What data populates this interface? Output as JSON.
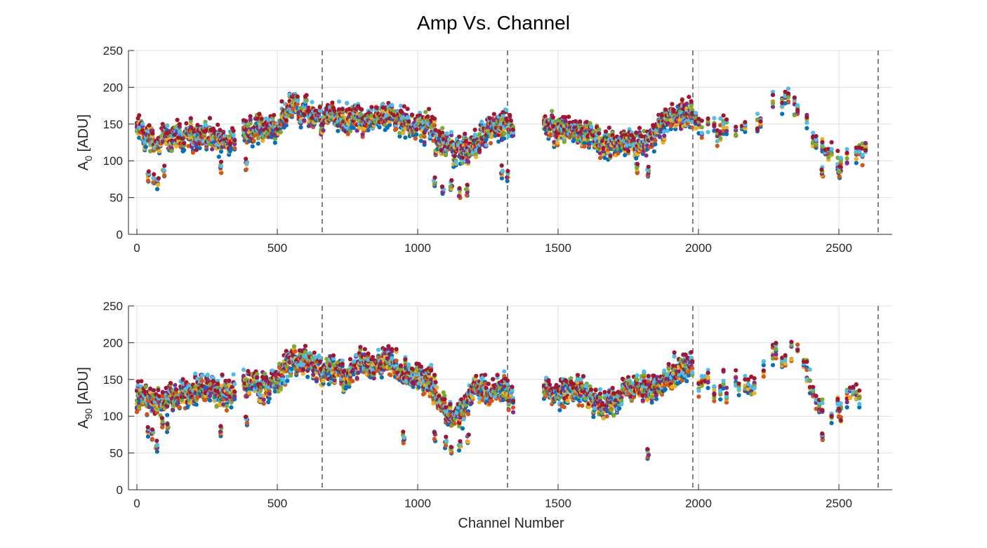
{
  "chart_data": [
    {
      "type": "scatter",
      "title": "Amp Vs. Channel",
      "xlabel": "",
      "ylabel": "A0 [ADU]",
      "ylabel_main": "A",
      "ylabel_sub": "0",
      "ylabel_unit": " [ADU]",
      "xlim": [
        -30,
        2690
      ],
      "ylim": [
        0,
        250
      ],
      "xticks": [
        0,
        500,
        1000,
        1500,
        2000,
        2500
      ],
      "yticks": [
        0,
        50,
        100,
        150,
        200,
        250
      ],
      "grid": true,
      "vlines": [
        660,
        1320,
        1980,
        2640
      ],
      "series_colors": [
        "#0072BD",
        "#D95319",
        "#EDB120",
        "#7E2F8E",
        "#77AC30",
        "#4DBEEE",
        "#A2142F"
      ],
      "channel_ranges": [
        [
          0,
          350
        ],
        [
          380,
          1340
        ],
        [
          1450,
          1980
        ],
        [
          1990,
          2600
        ]
      ],
      "profile": [
        [
          0,
          140
        ],
        [
          40,
          130
        ],
        [
          80,
          125
        ],
        [
          120,
          130
        ],
        [
          200,
          135
        ],
        [
          260,
          130
        ],
        [
          300,
          125
        ],
        [
          350,
          135
        ],
        [
          400,
          145
        ],
        [
          450,
          140
        ],
        [
          500,
          145
        ],
        [
          540,
          175
        ],
        [
          600,
          170
        ],
        [
          660,
          155
        ],
        [
          700,
          165
        ],
        [
          750,
          155
        ],
        [
          800,
          160
        ],
        [
          850,
          155
        ],
        [
          900,
          165
        ],
        [
          950,
          150
        ],
        [
          1000,
          150
        ],
        [
          1040,
          145
        ],
        [
          1080,
          125
        ],
        [
          1120,
          115
        ],
        [
          1160,
          110
        ],
        [
          1200,
          120
        ],
        [
          1250,
          140
        ],
        [
          1300,
          150
        ],
        [
          1340,
          145
        ],
        [
          1450,
          145
        ],
        [
          1500,
          145
        ],
        [
          1550,
          140
        ],
        [
          1600,
          140
        ],
        [
          1650,
          125
        ],
        [
          1700,
          120
        ],
        [
          1750,
          125
        ],
        [
          1800,
          120
        ],
        [
          1850,
          140
        ],
        [
          1900,
          160
        ],
        [
          1980,
          165
        ],
        [
          2000,
          150
        ],
        [
          2100,
          145
        ],
        [
          2200,
          140
        ],
        [
          2250,
          175
        ],
        [
          2300,
          185
        ],
        [
          2350,
          180
        ],
        [
          2400,
          140
        ],
        [
          2450,
          110
        ],
        [
          2500,
          100
        ],
        [
          2550,
          110
        ],
        [
          2600,
          110
        ]
      ],
      "outliers": [
        [
          40,
          80
        ],
        [
          60,
          75
        ],
        [
          75,
          70
        ],
        [
          95,
          85
        ],
        [
          300,
          90
        ],
        [
          390,
          95
        ],
        [
          1060,
          70
        ],
        [
          1090,
          60
        ],
        [
          1120,
          65
        ],
        [
          1150,
          55
        ],
        [
          1175,
          60
        ],
        [
          1300,
          85
        ],
        [
          1320,
          80
        ],
        [
          1780,
          90
        ],
        [
          1820,
          85
        ],
        [
          2440,
          85
        ],
        [
          2500,
          85
        ]
      ]
    },
    {
      "type": "scatter",
      "title": "",
      "xlabel": "Channel Number",
      "ylabel": "A90 [ADU]",
      "ylabel_main": "A",
      "ylabel_sub": "90",
      "ylabel_unit": " [ADU]",
      "xlim": [
        -30,
        2690
      ],
      "ylim": [
        0,
        250
      ],
      "xticks": [
        0,
        500,
        1000,
        1500,
        2000,
        2500
      ],
      "yticks": [
        0,
        50,
        100,
        150,
        200,
        250
      ],
      "grid": true,
      "vlines": [
        660,
        1320,
        1980,
        2640
      ],
      "series_colors": [
        "#0072BD",
        "#D95319",
        "#EDB120",
        "#7E2F8E",
        "#77AC30",
        "#4DBEEE",
        "#A2142F"
      ],
      "channel_ranges": [
        [
          0,
          350
        ],
        [
          380,
          1340
        ],
        [
          1450,
          1980
        ],
        [
          1990,
          2600
        ]
      ],
      "profile": [
        [
          0,
          130
        ],
        [
          40,
          120
        ],
        [
          80,
          120
        ],
        [
          120,
          125
        ],
        [
          200,
          135
        ],
        [
          260,
          140
        ],
        [
          300,
          130
        ],
        [
          350,
          140
        ],
        [
          400,
          145
        ],
        [
          450,
          140
        ],
        [
          500,
          145
        ],
        [
          540,
          175
        ],
        [
          600,
          175
        ],
        [
          660,
          160
        ],
        [
          700,
          165
        ],
        [
          750,
          150
        ],
        [
          800,
          175
        ],
        [
          850,
          170
        ],
        [
          900,
          180
        ],
        [
          950,
          160
        ],
        [
          1000,
          155
        ],
        [
          1040,
          150
        ],
        [
          1080,
          120
        ],
        [
          1120,
          100
        ],
        [
          1160,
          105
        ],
        [
          1200,
          140
        ],
        [
          1250,
          130
        ],
        [
          1300,
          140
        ],
        [
          1340,
          120
        ],
        [
          1450,
          135
        ],
        [
          1500,
          135
        ],
        [
          1550,
          135
        ],
        [
          1600,
          130
        ],
        [
          1650,
          115
        ],
        [
          1700,
          125
        ],
        [
          1750,
          135
        ],
        [
          1800,
          140
        ],
        [
          1850,
          140
        ],
        [
          1900,
          155
        ],
        [
          1980,
          170
        ],
        [
          2000,
          150
        ],
        [
          2100,
          140
        ],
        [
          2200,
          135
        ],
        [
          2250,
          180
        ],
        [
          2300,
          185
        ],
        [
          2350,
          190
        ],
        [
          2400,
          140
        ],
        [
          2450,
          110
        ],
        [
          2500,
          110
        ],
        [
          2550,
          130
        ],
        [
          2600,
          115
        ]
      ],
      "outliers": [
        [
          40,
          80
        ],
        [
          55,
          75
        ],
        [
          70,
          60
        ],
        [
          90,
          90
        ],
        [
          110,
          85
        ],
        [
          300,
          80
        ],
        [
          390,
          95
        ],
        [
          950,
          70
        ],
        [
          1060,
          75
        ],
        [
          1100,
          65
        ],
        [
          1120,
          55
        ],
        [
          1150,
          60
        ],
        [
          1180,
          70
        ],
        [
          1820,
          50
        ],
        [
          2440,
          72
        ],
        [
          2500,
          105
        ]
      ]
    }
  ]
}
